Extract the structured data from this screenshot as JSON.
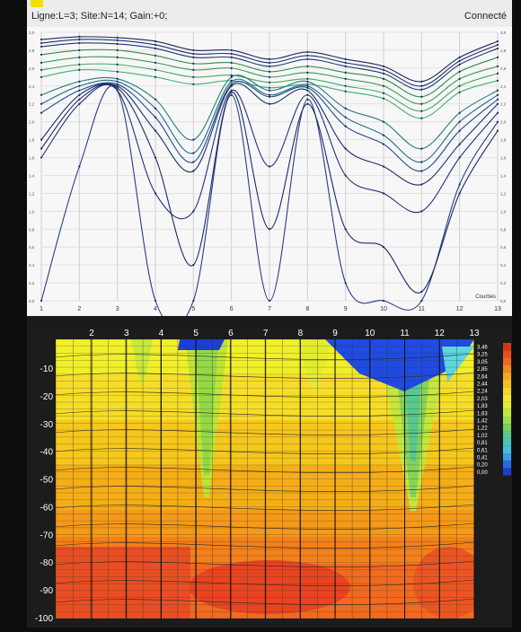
{
  "status": {
    "left": "Ligne:L=3;  Site:N=14;  Gain:+0;",
    "right": "Connecté"
  },
  "top_chart": {
    "x_ticks": [
      "1",
      "2",
      "3",
      "4",
      "5",
      "6",
      "7",
      "8",
      "9",
      "10",
      "11",
      "12",
      "13"
    ],
    "corner_label": "Courbes",
    "y_ticks_left": [
      "0,0",
      "0,2",
      "0,4",
      "0,6",
      "0,8",
      "1,0",
      "1,2",
      "1,4",
      "1,6",
      "1,8",
      "2,0",
      "2,2",
      "2,4",
      "2,6",
      "2,8",
      "3,0"
    ]
  },
  "bottom_chart": {
    "x_ticks": [
      "2",
      "3",
      "4",
      "5",
      "6",
      "7",
      "8",
      "9",
      "10",
      "11",
      "12",
      "13"
    ],
    "y_ticks": [
      "-10",
      "-20",
      "-30",
      "-40",
      "-50",
      "-60",
      "-70",
      "-80",
      "-90",
      "-100"
    ],
    "legend": [
      "3,46",
      "3,25",
      "3,05",
      "2,85",
      "2,64",
      "2,44",
      "2,24",
      "2,03",
      "1,83",
      "1,63",
      "1,42",
      "1,22",
      "1,02",
      "0,81",
      "0,61",
      "0,41",
      "0,20",
      "0,00"
    ]
  },
  "chart_data": {
    "type": "line",
    "x": [
      1,
      2,
      3,
      4,
      5,
      6,
      7,
      8,
      9,
      10,
      11,
      12,
      13
    ],
    "ylim": [
      0,
      3
    ],
    "series": [
      {
        "values": [
          2.92,
          2.95,
          2.94,
          2.9,
          2.8,
          2.8,
          2.7,
          2.78,
          2.7,
          2.62,
          2.45,
          2.72,
          2.9
        ]
      },
      {
        "values": [
          2.88,
          2.92,
          2.91,
          2.86,
          2.76,
          2.76,
          2.66,
          2.74,
          2.66,
          2.58,
          2.4,
          2.68,
          2.86
        ]
      },
      {
        "values": [
          2.84,
          2.88,
          2.87,
          2.82,
          2.72,
          2.72,
          2.62,
          2.7,
          2.62,
          2.54,
          2.36,
          2.64,
          2.82
        ]
      },
      {
        "values": [
          2.75,
          2.8,
          2.8,
          2.74,
          2.65,
          2.66,
          2.56,
          2.62,
          2.55,
          2.48,
          2.28,
          2.56,
          2.72
        ]
      },
      {
        "values": [
          2.66,
          2.72,
          2.72,
          2.66,
          2.58,
          2.6,
          2.5,
          2.55,
          2.48,
          2.4,
          2.2,
          2.48,
          2.62
        ]
      },
      {
        "values": [
          2.58,
          2.64,
          2.64,
          2.58,
          2.5,
          2.52,
          2.44,
          2.48,
          2.4,
          2.32,
          2.12,
          2.4,
          2.54
        ]
      },
      {
        "values": [
          2.5,
          2.58,
          2.56,
          2.5,
          2.42,
          2.46,
          2.38,
          2.42,
          2.34,
          2.26,
          2.04,
          2.33,
          2.46
        ]
      },
      {
        "values": [
          2.3,
          2.45,
          2.48,
          2.25,
          1.8,
          2.5,
          2.35,
          2.45,
          2.15,
          2.0,
          1.7,
          2.1,
          2.35
        ]
      },
      {
        "values": [
          2.2,
          2.4,
          2.45,
          2.15,
          1.65,
          2.45,
          2.3,
          2.4,
          2.05,
          1.85,
          1.55,
          2.0,
          2.3
        ]
      },
      {
        "values": [
          2.1,
          2.35,
          2.42,
          2.05,
          1.55,
          2.42,
          2.28,
          2.38,
          1.95,
          1.75,
          1.45,
          1.9,
          2.25
        ]
      },
      {
        "values": [
          1.8,
          2.3,
          2.4,
          1.9,
          1.45,
          2.4,
          2.2,
          2.35,
          1.7,
          1.5,
          1.3,
          1.75,
          2.2
        ]
      },
      {
        "values": [
          1.6,
          2.2,
          2.35,
          1.2,
          1.0,
          2.35,
          1.5,
          2.3,
          1.4,
          1.2,
          1.0,
          1.6,
          2.1
        ]
      },
      {
        "values": [
          0.0,
          1.5,
          2.35,
          0.0,
          0.0,
          2.3,
          0.0,
          2.25,
          0.2,
          0.0,
          0.0,
          1.3,
          2.0
        ]
      },
      {
        "values": [
          1.7,
          2.25,
          2.38,
          1.6,
          0.4,
          2.33,
          0.8,
          2.2,
          0.8,
          0.6,
          0.1,
          1.2,
          1.9
        ]
      }
    ]
  }
}
